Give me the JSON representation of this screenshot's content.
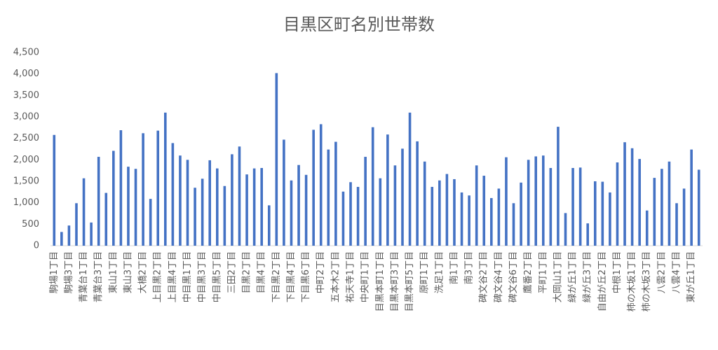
{
  "chart_data": {
    "type": "bar",
    "title": "目黒区町名別世帯数",
    "categories": [
      "駒場1丁目",
      null,
      "駒場3丁目",
      null,
      "青葉台1丁目",
      null,
      "青葉台3丁目",
      null,
      "東山1丁目",
      null,
      "東山3丁目",
      null,
      "大橋2丁目",
      null,
      "上目黒2丁目",
      null,
      "上目黒4丁目",
      null,
      "中目黒1丁目",
      null,
      "中目黒3丁目",
      null,
      "中目黒5丁目",
      null,
      "三田2丁目",
      null,
      "目黒2丁目",
      null,
      "目黒4丁目",
      null,
      "下目黒2丁目",
      null,
      "下目黒4丁目",
      null,
      "下目黒6丁目",
      null,
      "中町2丁目",
      null,
      "五本木2丁目",
      null,
      "祐天寺1丁目",
      null,
      "中央町1丁目",
      null,
      "目黒本町1丁目",
      null,
      "目黒本町3丁目",
      null,
      "目黒本町5丁目",
      null,
      "原町1丁目",
      null,
      "洗足1丁目",
      null,
      "南1丁目",
      null,
      "南3丁目",
      null,
      "碑文谷2丁目",
      null,
      "碑文谷4丁目",
      null,
      "碑文谷6丁目",
      null,
      "鷹番2丁目",
      null,
      "平町1丁目",
      null,
      "大岡山1丁目",
      null,
      "緑が丘1丁目",
      null,
      "緑が丘3丁目",
      null,
      "自由が丘2丁目",
      null,
      "中根1丁目",
      null,
      "柿の木坂1丁目",
      null,
      "柿の木坂3丁目",
      null,
      "八雲2丁目",
      null,
      "八雲4丁目",
      null,
      "東が丘1丁目",
      null
    ],
    "values": [
      2580,
      320,
      470,
      990,
      1570,
      540,
      2070,
      1230,
      2210,
      2690,
      1840,
      1790,
      2620,
      1090,
      2680,
      3100,
      2390,
      2100,
      2000,
      1350,
      1560,
      1990,
      1800,
      1390,
      2130,
      2310,
      1660,
      1800,
      1810,
      940,
      4020,
      2470,
      1520,
      1880,
      1650,
      2700,
      2830,
      2240,
      2420,
      1260,
      1480,
      1370,
      2070,
      2760,
      1570,
      2590,
      1870,
      2260,
      3100,
      2430,
      1960,
      1370,
      1520,
      1670,
      1550,
      1240,
      1170,
      1870,
      1630,
      1110,
      1330,
      2060,
      990,
      1470,
      2000,
      2080,
      2100,
      1810,
      2770,
      760,
      1810,
      1820,
      520,
      1500,
      1490,
      1240,
      1940,
      2410,
      2270,
      2020,
      820,
      1580,
      1790,
      1960,
      990,
      1330,
      2240,
      1770
    ],
    "color": "#4472c4",
    "ylim": [
      0,
      4500
    ],
    "yticks": [
      0,
      500,
      {
        "value": 1000,
        "label": "1,000"
      },
      {
        "value": 1500,
        "label": "1,500"
      },
      {
        "value": 2000,
        "label": "2,000"
      },
      {
        "value": 2500,
        "label": "2,500"
      },
      {
        "value": 3000,
        "label": "3,000"
      },
      {
        "value": 3500,
        "label": "3,500"
      },
      {
        "value": 4000,
        "label": "4,000"
      },
      {
        "value": 4500,
        "label": "4,500"
      }
    ],
    "grid": false
  }
}
